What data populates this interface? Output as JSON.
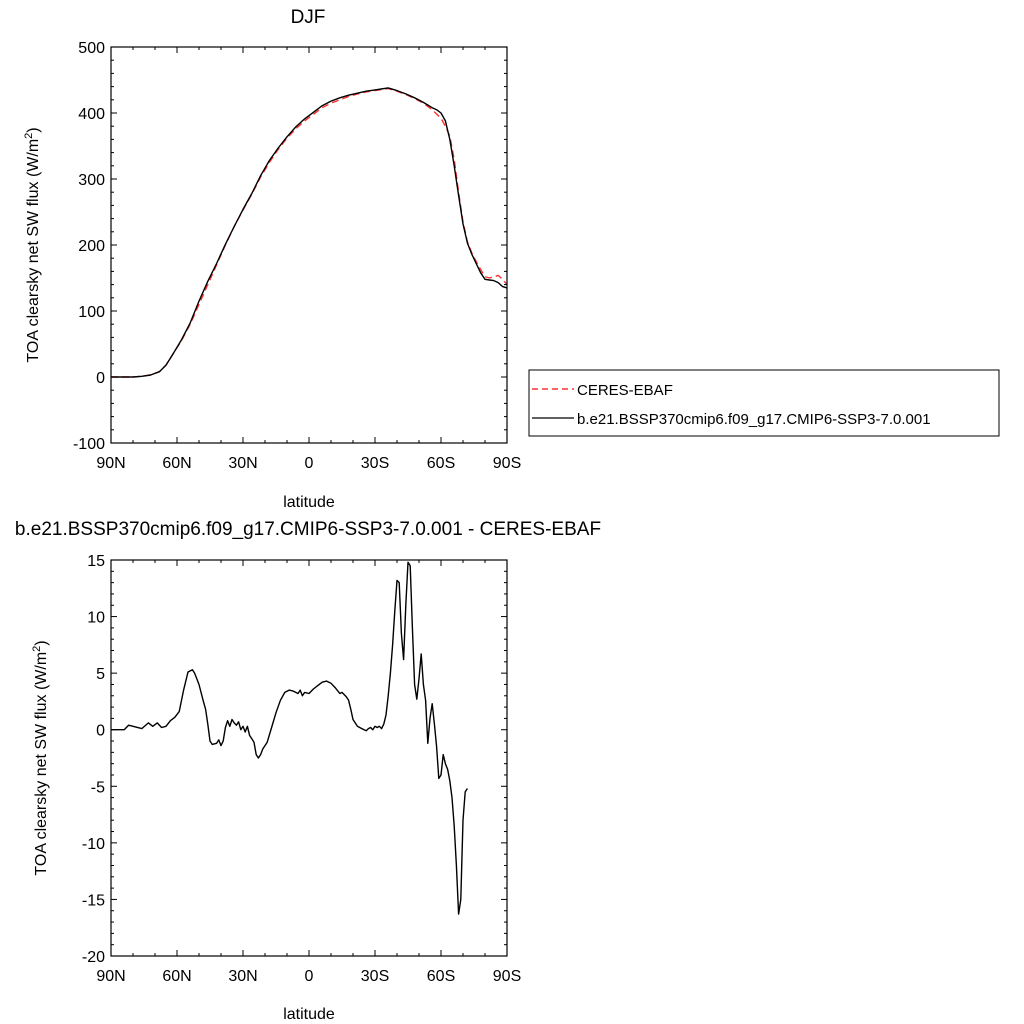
{
  "chart_data": [
    {
      "type": "line",
      "title": "DJF",
      "xlabel": "latitude",
      "ylabel": "TOA clearsky net SW flux (W/m",
      "ylabel_sup": "2",
      "ylabel_close": ")",
      "xticks": [
        {
          "lat": 90,
          "label": "90N"
        },
        {
          "lat": 60,
          "label": "60N"
        },
        {
          "lat": 30,
          "label": "30N"
        },
        {
          "lat": 0,
          "label": "0"
        },
        {
          "lat": -30,
          "label": "30S"
        },
        {
          "lat": -60,
          "label": "60S"
        },
        {
          "lat": -90,
          "label": "90S"
        }
      ],
      "xlim": [
        90,
        -90
      ],
      "ylim": [
        -100,
        500
      ],
      "yticks": [
        -100,
        0,
        100,
        200,
        300,
        400,
        500
      ],
      "legend_position": "right",
      "series": [
        {
          "name": "CERES-EBAF",
          "color": "#ff3030",
          "dash": "dashed",
          "points": [
            [
              90,
              0
            ],
            [
              85,
              0
            ],
            [
              80,
              0
            ],
            [
              76,
              1
            ],
            [
              72,
              3
            ],
            [
              68,
              8
            ],
            [
              65,
              18
            ],
            [
              62,
              34
            ],
            [
              58,
              55
            ],
            [
              54,
              80
            ],
            [
              50,
              110
            ],
            [
              46,
              140
            ],
            [
              42,
              170
            ],
            [
              38,
              200
            ],
            [
              34,
              228
            ],
            [
              30,
              253
            ],
            [
              26,
              277
            ],
            [
              22,
              303
            ],
            [
              18,
              325
            ],
            [
              14,
              345
            ],
            [
              10,
              362
            ],
            [
              6,
              376
            ],
            [
              2,
              388
            ],
            [
              -2,
              398
            ],
            [
              -6,
              408
            ],
            [
              -10,
              415
            ],
            [
              -14,
              420
            ],
            [
              -18,
              425
            ],
            [
              -22,
              429
            ],
            [
              -26,
              432
            ],
            [
              -30,
              434
            ],
            [
              -34,
              436
            ],
            [
              -36,
              437
            ],
            [
              -40,
              433
            ],
            [
              -44,
              428
            ],
            [
              -48,
              422
            ],
            [
              -52,
              415
            ],
            [
              -56,
              405
            ],
            [
              -60,
              392
            ],
            [
              -62,
              380
            ],
            [
              -64,
              365
            ],
            [
              -66,
              330
            ],
            [
              -68,
              280
            ],
            [
              -70,
              235
            ],
            [
              -72,
              205
            ],
            [
              -74,
              188
            ],
            [
              -76,
              175
            ],
            [
              -78,
              163
            ],
            [
              -80,
              152
            ],
            [
              -82,
              150
            ],
            [
              -84,
              152
            ],
            [
              -86,
              154
            ],
            [
              -88,
              148
            ],
            [
              -90,
              140
            ]
          ]
        },
        {
          "name": "b.e21.BSSP370cmip6.f09_g17.CMIP6-SSP3-7.0.001",
          "color": "#000000",
          "dash": "solid",
          "points": [
            [
              90,
              0
            ],
            [
              85,
              0
            ],
            [
              80,
              0
            ],
            [
              76,
              1
            ],
            [
              72,
              3
            ],
            [
              68,
              8
            ],
            [
              65,
              18
            ],
            [
              62,
              34
            ],
            [
              58,
              56
            ],
            [
              54,
              82
            ],
            [
              50,
              115
            ],
            [
              46,
              145
            ],
            [
              42,
              172
            ],
            [
              38,
              201
            ],
            [
              34,
              228
            ],
            [
              30,
              254
            ],
            [
              26,
              278
            ],
            [
              22,
              305
            ],
            [
              18,
              328
            ],
            [
              14,
              347
            ],
            [
              10,
              364
            ],
            [
              6,
              379
            ],
            [
              2,
              391
            ],
            [
              -2,
              401
            ],
            [
              -6,
              411
            ],
            [
              -10,
              418
            ],
            [
              -14,
              423
            ],
            [
              -18,
              427
            ],
            [
              -22,
              430
            ],
            [
              -26,
              433
            ],
            [
              -30,
              435
            ],
            [
              -34,
              437
            ],
            [
              -36,
              438
            ],
            [
              -40,
              434
            ],
            [
              -44,
              429
            ],
            [
              -48,
              423
            ],
            [
              -52,
              416
            ],
            [
              -56,
              408
            ],
            [
              -58,
              405
            ],
            [
              -60,
              400
            ],
            [
              -62,
              388
            ],
            [
              -64,
              360
            ],
            [
              -66,
              320
            ],
            [
              -68,
              275
            ],
            [
              -70,
              232
            ],
            [
              -72,
              203
            ],
            [
              -74,
              186
            ],
            [
              -76,
              172
            ],
            [
              -78,
              158
            ],
            [
              -80,
              148
            ],
            [
              -82,
              147
            ],
            [
              -84,
              146
            ],
            [
              -86,
              143
            ],
            [
              -88,
              137
            ],
            [
              -90,
              135
            ]
          ]
        }
      ]
    },
    {
      "type": "line",
      "title": "b.e21.BSSP370cmip6.f09_g17.CMIP6-SSP3-7.0.001 - CERES-EBAF",
      "xlabel": "latitude",
      "ylabel": "TOA clearsky net SW flux (W/m",
      "ylabel_sup": "2",
      "ylabel_close": ")",
      "xticks": [
        {
          "lat": 90,
          "label": "90N"
        },
        {
          "lat": 60,
          "label": "60N"
        },
        {
          "lat": 30,
          "label": "30N"
        },
        {
          "lat": 0,
          "label": "0"
        },
        {
          "lat": -30,
          "label": "30S"
        },
        {
          "lat": -60,
          "label": "60S"
        },
        {
          "lat": -90,
          "label": "90S"
        }
      ],
      "xlim": [
        90,
        -90
      ],
      "ylim": [
        -20,
        15
      ],
      "yticks": [
        -20,
        -15,
        -10,
        -5,
        0,
        5,
        10,
        15
      ],
      "series": [
        {
          "name": "",
          "color": "#000000",
          "dash": "solid",
          "points": [
            [
              90,
              0
            ],
            [
              84,
              0
            ],
            [
              82,
              0.4
            ],
            [
              80,
              0.3
            ],
            [
              76,
              0.1
            ],
            [
              73,
              0.6
            ],
            [
              71,
              0.3
            ],
            [
              69,
              0.6
            ],
            [
              67,
              0.2
            ],
            [
              65,
              0.3
            ],
            [
              63,
              0.8
            ],
            [
              61,
              1.1
            ],
            [
              59,
              1.6
            ],
            [
              57,
              3.5
            ],
            [
              55,
              5.1
            ],
            [
              53,
              5.3
            ],
            [
              52,
              5.0
            ],
            [
              50,
              4.0
            ],
            [
              48,
              2.5
            ],
            [
              47,
              1.8
            ],
            [
              46,
              0.5
            ],
            [
              45,
              -1.0
            ],
            [
              44,
              -1.3
            ],
            [
              42,
              -1.2
            ],
            [
              41,
              -0.9
            ],
            [
              40,
              -1.4
            ],
            [
              39,
              -1.0
            ],
            [
              38,
              0.2
            ],
            [
              37,
              0.8
            ],
            [
              36,
              0.3
            ],
            [
              35,
              0.9
            ],
            [
              34,
              0.6
            ],
            [
              33,
              0.4
            ],
            [
              32,
              0.7
            ],
            [
              31,
              0.0
            ],
            [
              30,
              0.3
            ],
            [
              29,
              -0.2
            ],
            [
              28,
              0.3
            ],
            [
              27,
              -0.5
            ],
            [
              26,
              -0.8
            ],
            [
              25,
              -1.1
            ],
            [
              24,
              -2.2
            ],
            [
              23,
              -2.5
            ],
            [
              22,
              -2.2
            ],
            [
              21,
              -1.7
            ],
            [
              20,
              -1.4
            ],
            [
              19,
              -1.1
            ],
            [
              17,
              0.2
            ],
            [
              15,
              1.5
            ],
            [
              13,
              2.6
            ],
            [
              11,
              3.3
            ],
            [
              9,
              3.5
            ],
            [
              7,
              3.4
            ],
            [
              5,
              3.2
            ],
            [
              4,
              3.5
            ],
            [
              3,
              3.0
            ],
            [
              2,
              3.3
            ],
            [
              0,
              3.2
            ],
            [
              -2,
              3.6
            ],
            [
              -4,
              3.9
            ],
            [
              -6,
              4.2
            ],
            [
              -8,
              4.3
            ],
            [
              -10,
              4.1
            ],
            [
              -12,
              3.7
            ],
            [
              -14,
              3.2
            ],
            [
              -15,
              3.3
            ],
            [
              -17,
              2.9
            ],
            [
              -18,
              2.6
            ],
            [
              -19,
              1.8
            ],
            [
              -20,
              0.9
            ],
            [
              -22,
              0.3
            ],
            [
              -24,
              0.1
            ],
            [
              -26,
              -0.1
            ],
            [
              -27,
              0.1
            ],
            [
              -28,
              0.2
            ],
            [
              -29,
              0.0
            ],
            [
              -30,
              0.3
            ],
            [
              -31,
              0.2
            ],
            [
              -32,
              0.3
            ],
            [
              -33,
              0.1
            ],
            [
              -34,
              0.5
            ],
            [
              -35,
              1.3
            ],
            [
              -36,
              3.0
            ],
            [
              -37,
              5.0
            ],
            [
              -38,
              7.5
            ],
            [
              -39,
              10.5
            ],
            [
              -40,
              13.2
            ],
            [
              -41,
              13.0
            ],
            [
              -42,
              8.5
            ],
            [
              -43,
              6.2
            ],
            [
              -44,
              11.0
            ],
            [
              -45,
              14.8
            ],
            [
              -46,
              14.5
            ],
            [
              -47,
              9.0
            ],
            [
              -48,
              4.0
            ],
            [
              -49,
              2.7
            ],
            [
              -50,
              4.5
            ],
            [
              -51,
              6.7
            ],
            [
              -52,
              4.0
            ],
            [
              -53,
              2.6
            ],
            [
              -54,
              -1.2
            ],
            [
              -55,
              1.0
            ],
            [
              -56,
              2.3
            ],
            [
              -57,
              0.5
            ],
            [
              -58,
              -1.5
            ],
            [
              -59,
              -4.3
            ],
            [
              -60,
              -4.0
            ],
            [
              -61,
              -2.2
            ],
            [
              -62,
              -3.0
            ],
            [
              -63,
              -3.5
            ],
            [
              -64,
              -4.5
            ],
            [
              -65,
              -6.0
            ],
            [
              -66,
              -8.5
            ],
            [
              -67,
              -12.0
            ],
            [
              -68,
              -16.3
            ],
            [
              -69,
              -15.0
            ],
            [
              -70,
              -8.0
            ],
            [
              -71,
              -5.5
            ],
            [
              -72,
              -5.2
            ]
          ]
        }
      ]
    }
  ]
}
